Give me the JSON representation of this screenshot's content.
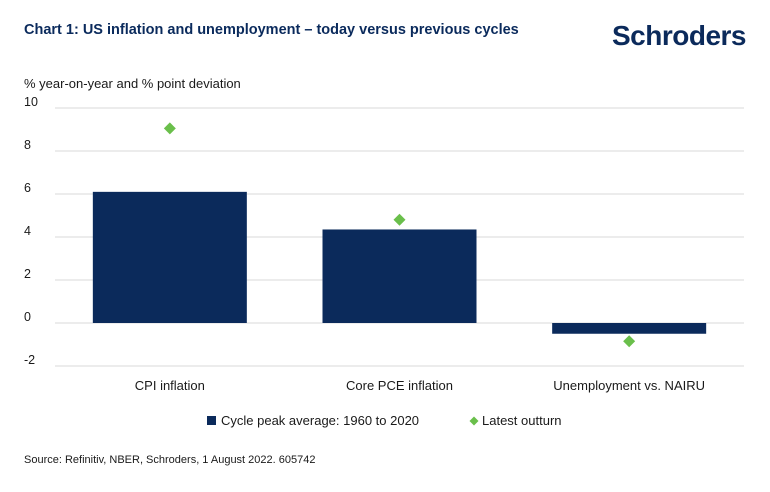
{
  "header": {
    "title": "Chart 1: US inflation and unemployment – today versus previous cycles",
    "logo_text": "Schroders"
  },
  "footer": {
    "source": "Source: Refinitiv, NBER, Schroders, 1 August 2022. 605742"
  },
  "colors": {
    "bar": "#0b2a5b",
    "diamond": "#6abf4b",
    "grid": "#d9d9d9"
  },
  "chart_data": {
    "type": "bar",
    "ylabel": "% year-on-year and % point deviation",
    "categories": [
      "CPI inflation",
      "Core PCE inflation",
      "Unemployment vs. NAIRU"
    ],
    "ylim": [
      -2,
      10
    ],
    "yticks": [
      -2,
      0,
      2,
      4,
      6,
      8,
      10
    ],
    "grid": true,
    "legend_position": "bottom",
    "series": [
      {
        "name": "Cycle peak average: 1960 to 2020",
        "type": "bar",
        "values": [
          6.1,
          4.35,
          -0.5
        ]
      },
      {
        "name": "Latest outturn",
        "type": "marker",
        "values": [
          9.05,
          4.8,
          -0.85
        ]
      }
    ]
  }
}
